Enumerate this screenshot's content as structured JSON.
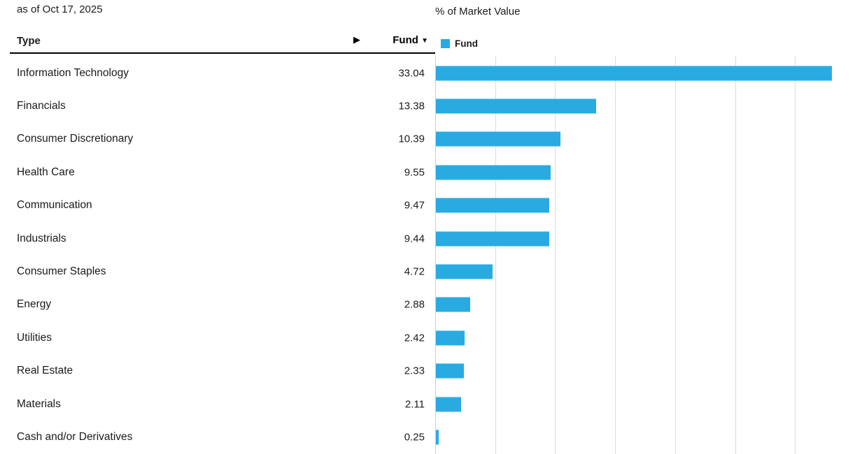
{
  "meta": {
    "as_of_label": "as of Oct 17, 2025",
    "chart_title": "% of Market Value"
  },
  "table": {
    "type_header": "Type",
    "fund_header": "Fund",
    "sort_indicator": "▼",
    "scroll_arrow": "▶"
  },
  "legend": {
    "fund_label": "Fund"
  },
  "colors": {
    "bar": "#29ABE2",
    "grid": "#DDDDDD",
    "axis": "#CFCFCF",
    "text": "#1B1B1B",
    "header_rule": "#000000"
  },
  "chart_data": {
    "type": "bar",
    "orientation": "horizontal",
    "title": "% of Market Value",
    "xlabel": "% of Market Value",
    "ylabel": "Type",
    "xlim": [
      0,
      35
    ],
    "ticks": [
      0,
      5,
      10,
      15,
      20,
      25,
      30,
      35
    ],
    "grid": true,
    "legend_position": "top",
    "legend_entries": [
      "Fund"
    ],
    "categories": [
      "Information Technology",
      "Financials",
      "Consumer Discretionary",
      "Health Care",
      "Communication",
      "Industrials",
      "Consumer Staples",
      "Energy",
      "Utilities",
      "Real Estate",
      "Materials",
      "Cash and/or Derivatives"
    ],
    "series": [
      {
        "name": "Fund",
        "values": [
          33.04,
          13.38,
          10.39,
          9.55,
          9.47,
          9.44,
          4.72,
          2.88,
          2.42,
          2.33,
          2.11,
          0.25
        ],
        "value_labels": [
          "33.04",
          "13.38",
          "10.39",
          "9.55",
          "9.47",
          "9.44",
          "4.72",
          "2.88",
          "2.42",
          "2.33",
          "2.11",
          "0.25"
        ]
      }
    ]
  }
}
